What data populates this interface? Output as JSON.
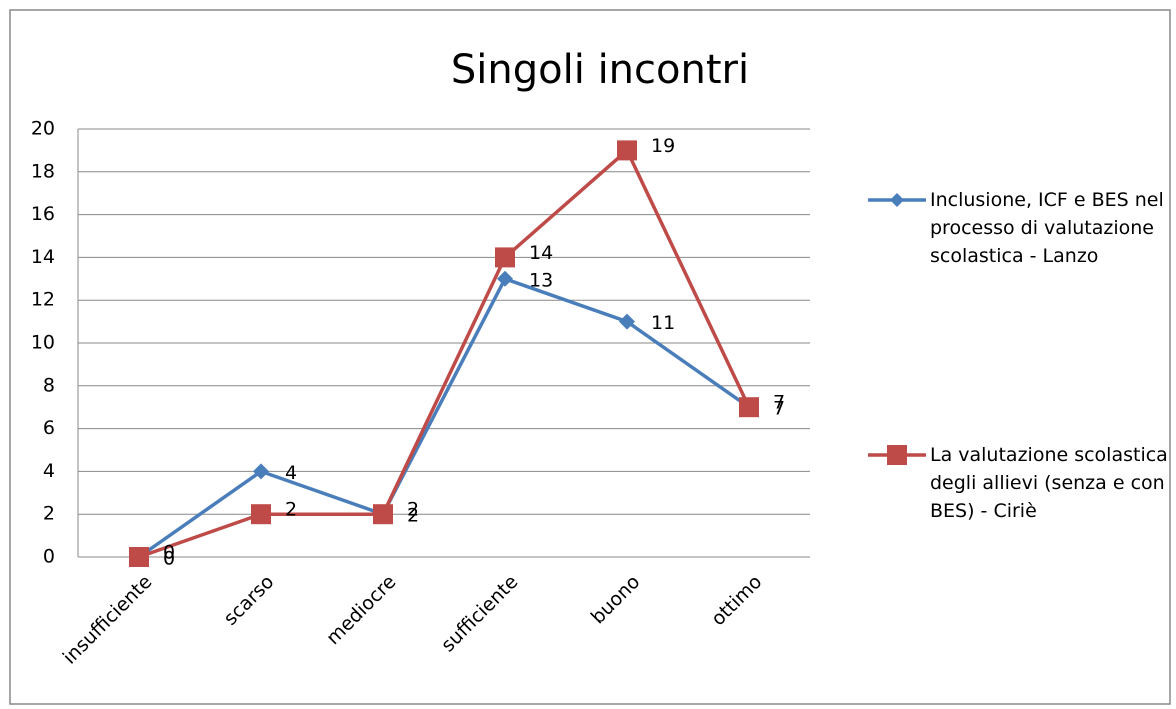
{
  "chart_data": {
    "type": "line",
    "title": "Singoli incontri",
    "categories": [
      "insufficiente",
      "scarso",
      "mediocre",
      "sufficiente",
      "buono",
      "ottimo"
    ],
    "series": [
      {
        "name": "Inclusione, ICF e BES nel processo di valutazione scolastica - Lanzo",
        "color": "#4a7ebb",
        "values": [
          0,
          4,
          2,
          13,
          11,
          7
        ]
      },
      {
        "name": "La valutazione scolastica degli allievi (senza e con BES) - Ciriè",
        "color": "#be4b48",
        "values": [
          0,
          2,
          2,
          14,
          19,
          7
        ]
      }
    ],
    "ylim": [
      0,
      20
    ],
    "yticks": [
      0,
      2,
      4,
      6,
      8,
      10,
      12,
      14,
      16,
      18,
      20
    ],
    "grid": true,
    "legend": "right"
  }
}
